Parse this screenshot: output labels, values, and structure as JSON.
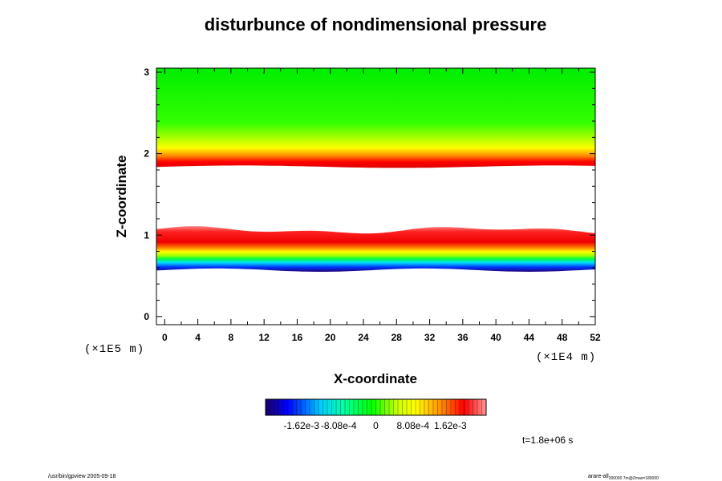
{
  "chart_data": {
    "type": "heatmap",
    "title": "disturbunce of nondimensional pressure",
    "xlabel": "X-coordinate",
    "ylabel": "Z-coordinate",
    "x_unit": "(×1E4 m)",
    "y_unit": "(×1E5 m)",
    "xlim": [
      -1,
      52
    ],
    "ylim": [
      -0.1,
      3.05
    ],
    "x_ticks": [
      "0",
      "4",
      "8",
      "12",
      "16",
      "20",
      "24",
      "28",
      "32",
      "36",
      "40",
      "44",
      "48",
      "52"
    ],
    "y_ticks": [
      "0",
      "1",
      "2",
      "3"
    ],
    "colorbar": {
      "tick_labels": [
        "-1.62e-3",
        "-8.08e-4",
        "0",
        "8.08e-4",
        "1.62e-3"
      ],
      "range": [
        -0.0024,
        0.0024
      ]
    },
    "regions": [
      {
        "zrange": [
          2.1,
          3.05
        ],
        "level": 0.0,
        "description_color": "green"
      },
      {
        "zrange": [
          1.85,
          2.1
        ],
        "level_gradient": [
          0.0,
          0.0022
        ]
      },
      {
        "zrange": [
          1.12,
          1.85
        ],
        "level": null
      },
      {
        "zrange": [
          0.6,
          1.12
        ],
        "level_gradient": [
          0.0019,
          -0.0024
        ]
      },
      {
        "zrange": [
          -0.1,
          0.6
        ],
        "level": null
      }
    ],
    "time_label": "t=1.8e+06 s"
  },
  "footer": {
    "left": "/usr/bin/gpview 2005-09-18",
    "right": "arare-all",
    "right_sub": "200000 7m@Zmax=180000"
  }
}
